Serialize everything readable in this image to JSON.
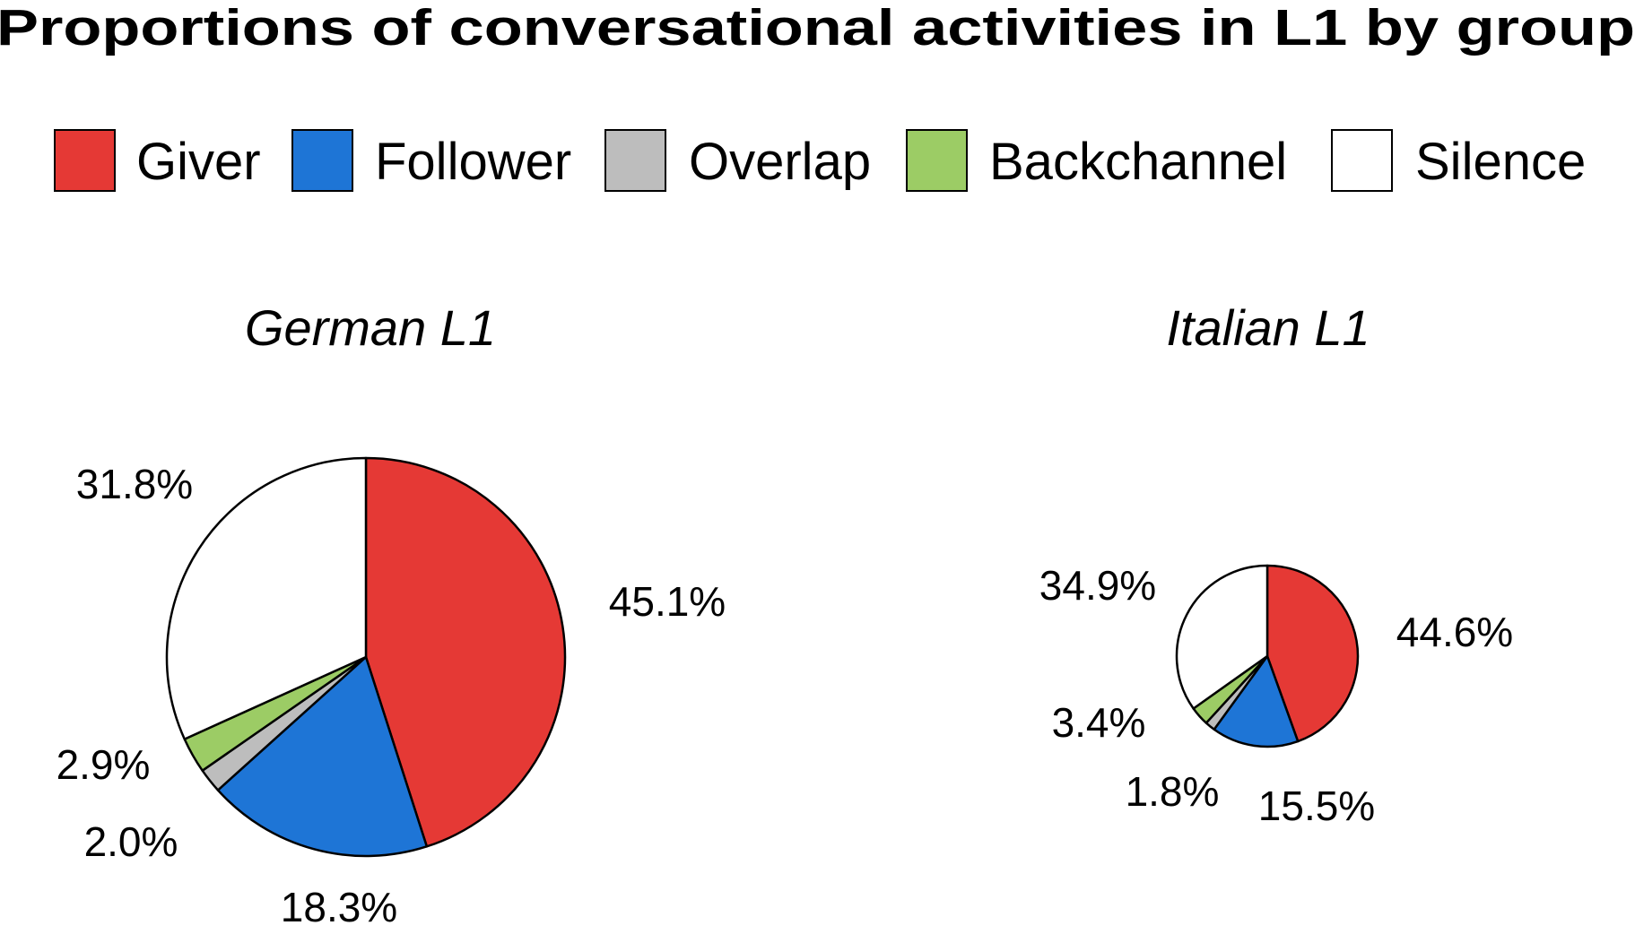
{
  "chart_data": {
    "type": "pie",
    "title": "Proportions of conversational activities in L1 by group",
    "legend_position": "top",
    "categories": [
      "Giver",
      "Follower",
      "Overlap",
      "Backchannel",
      "Silence"
    ],
    "colors": {
      "Giver": "#e53935",
      "Follower": "#1e75d6",
      "Overlap": "#bdbdbd",
      "Backchannel": "#9ccc65",
      "Silence": "#ffffff"
    },
    "pies": [
      {
        "title": "German L1",
        "relative_size": "large",
        "values": [
          45.1,
          18.3,
          2.0,
          2.9,
          31.8
        ],
        "labels": [
          "45.1%",
          "18.3%",
          "2.0%",
          "2.9%",
          "31.8%"
        ]
      },
      {
        "title": "Italian L1",
        "relative_size": "small",
        "values": [
          44.6,
          15.5,
          1.8,
          3.4,
          34.9
        ],
        "labels": [
          "44.6%",
          "15.5%",
          "1.8%",
          "3.4%",
          "34.9%"
        ]
      }
    ]
  }
}
